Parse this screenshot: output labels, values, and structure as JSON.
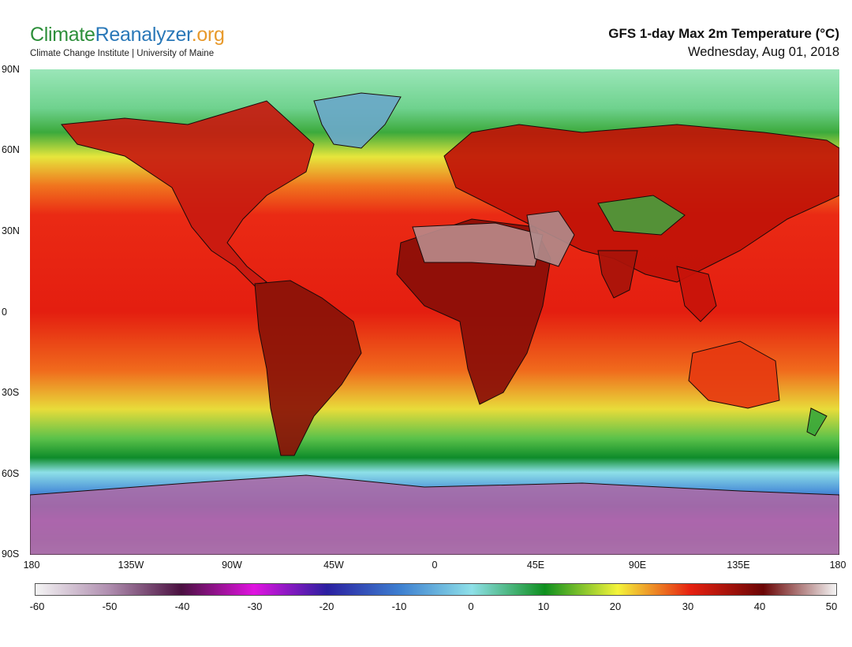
{
  "header": {
    "logo_part1": "Climate",
    "logo_part2": "Reanalyzer",
    "logo_part3": ".org",
    "subtitle": "Climate Change Institute | University of Maine",
    "title": "GFS 1-day Max 2m Temperature (°C)",
    "date": "Wednesday, Aug 01, 2018"
  },
  "axes": {
    "lat_labels": [
      "90N",
      "60N",
      "30N",
      "0",
      "30S",
      "60S",
      "90S"
    ],
    "lon_labels": [
      "180",
      "135W",
      "90W",
      "45W",
      "0",
      "45E",
      "90E",
      "135E",
      "180"
    ]
  },
  "colorbar": {
    "ticks": [
      "-60",
      "-50",
      "-40",
      "-30",
      "-20",
      "-10",
      "0",
      "10",
      "20",
      "30",
      "40",
      "50"
    ],
    "colors": [
      "#f4f4f4",
      "#b08fb0",
      "#4a1040",
      "#e013e0",
      "#2a1fa0",
      "#3d7fd0",
      "#8ee0e8",
      "#0e8f1e",
      "#f4f43a",
      "#e62010",
      "#6a0505",
      "#f4f4f4"
    ]
  }
}
